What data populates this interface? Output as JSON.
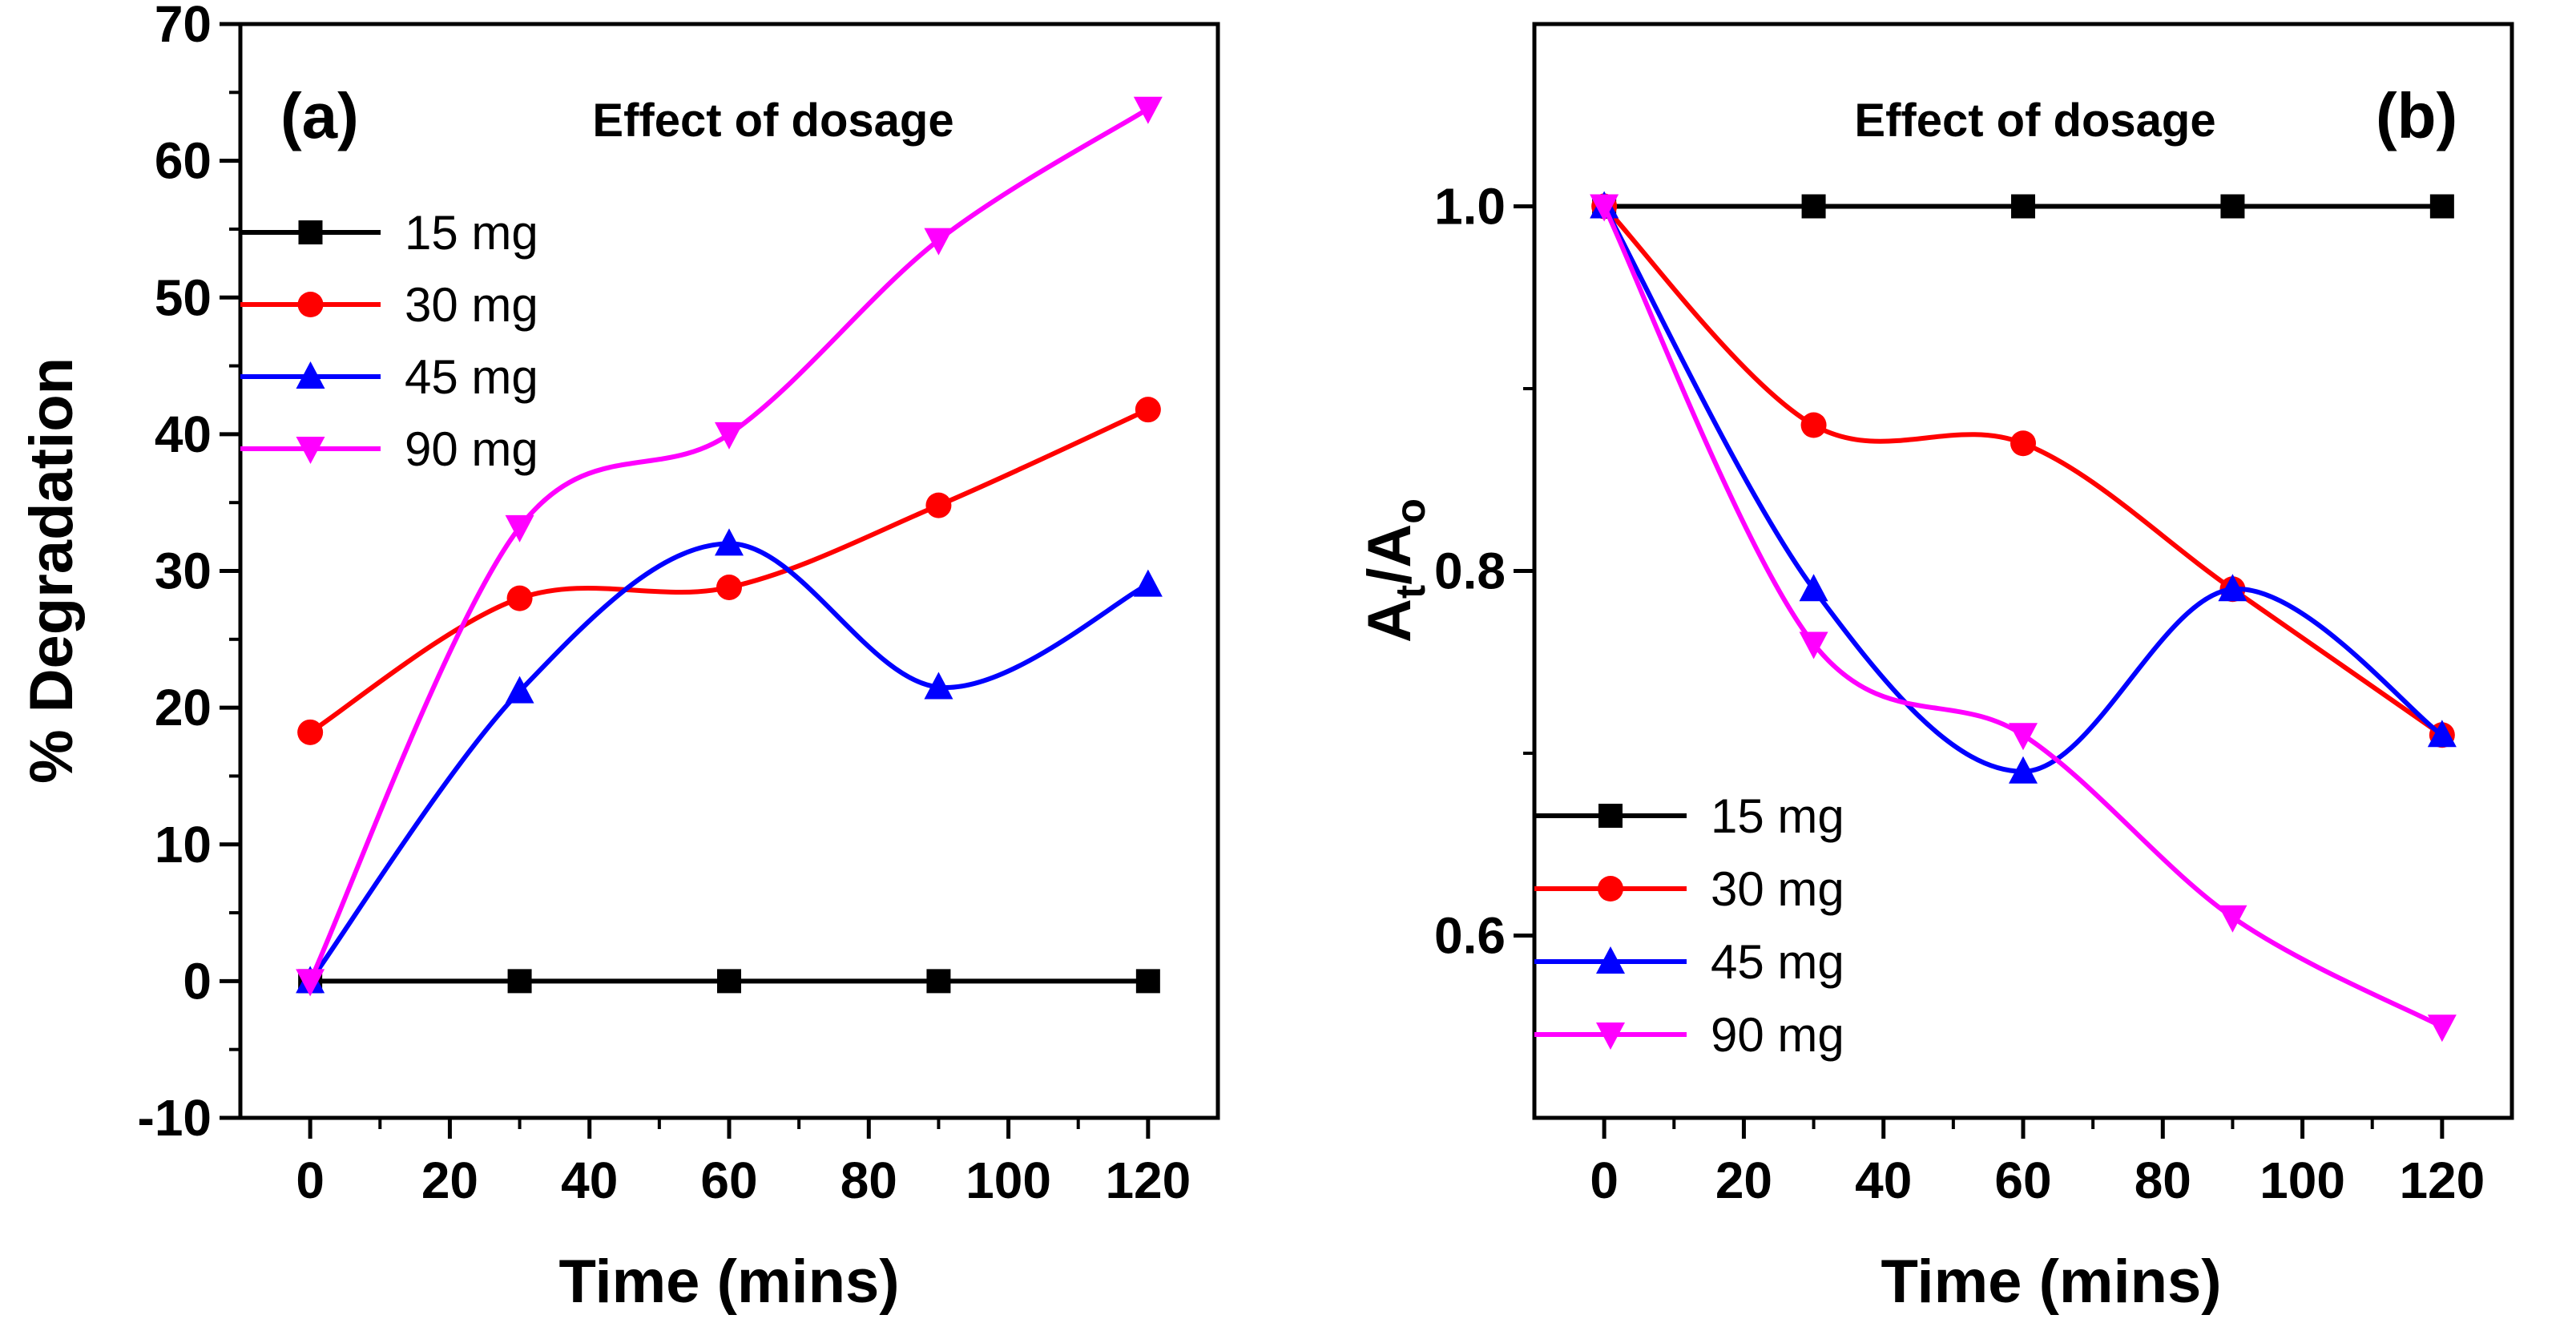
{
  "chart_data": [
    {
      "type": "line",
      "panel_label": "(a)",
      "title": "Effect of dosage",
      "xlabel": "Time (mins)",
      "ylabel": "% Degradation",
      "xlim": [
        -10,
        130
      ],
      "ylim": [
        -10,
        70
      ],
      "x_ticks": [
        "0",
        "20",
        "40",
        "60",
        "80",
        "100",
        "120"
      ],
      "y_ticks": [
        "-10",
        "0",
        "10",
        "20",
        "30",
        "40",
        "50",
        "60",
        "70"
      ],
      "x": [
        0,
        30,
        60,
        90,
        120
      ],
      "legend_position": "left",
      "series": [
        {
          "name": "15 mg",
          "color": "#000000",
          "marker": "square",
          "values": [
            0,
            0,
            0,
            0,
            0
          ]
        },
        {
          "name": "30 mg",
          "color": "#ff0000",
          "marker": "circle",
          "values": [
            18.2,
            28,
            28.8,
            34.8,
            41.8
          ]
        },
        {
          "name": "45 mg",
          "color": "#0000ff",
          "marker": "triangle-up",
          "values": [
            0,
            21.2,
            32,
            21.5,
            29
          ]
        },
        {
          "name": "90 mg",
          "color": "#ff00ff",
          "marker": "triangle-down",
          "values": [
            0,
            33.2,
            40,
            54.2,
            63.8
          ]
        }
      ]
    },
    {
      "type": "line",
      "panel_label": "(b)",
      "title": "Effect of dosage",
      "xlabel": "Time (mins)",
      "ylabel_main": "A",
      "ylabel_sub1": "t",
      "ylabel_mid": "/A",
      "ylabel_sub2": "o",
      "xlim": [
        -10,
        130
      ],
      "ylim": [
        0.5,
        1.1
      ],
      "x_ticks": [
        "0",
        "20",
        "40",
        "60",
        "80",
        "100",
        "120"
      ],
      "y_ticks": [
        "0.6",
        "0.8",
        "1.0"
      ],
      "x": [
        0,
        30,
        60,
        90,
        120
      ],
      "legend_position": "bottom-left",
      "series": [
        {
          "name": "15 mg",
          "color": "#000000",
          "marker": "square",
          "values": [
            1.0,
            1.0,
            1.0,
            1.0,
            1.0
          ]
        },
        {
          "name": "30 mg",
          "color": "#ff0000",
          "marker": "circle",
          "values": [
            1.0,
            0.88,
            0.87,
            0.79,
            0.71
          ]
        },
        {
          "name": "45 mg",
          "color": "#0000ff",
          "marker": "triangle-up",
          "values": [
            1.0,
            0.79,
            0.69,
            0.79,
            0.71
          ]
        },
        {
          "name": "90 mg",
          "color": "#ff00ff",
          "marker": "triangle-down",
          "values": [
            1.0,
            0.76,
            0.71,
            0.61,
            0.55
          ]
        }
      ]
    }
  ]
}
